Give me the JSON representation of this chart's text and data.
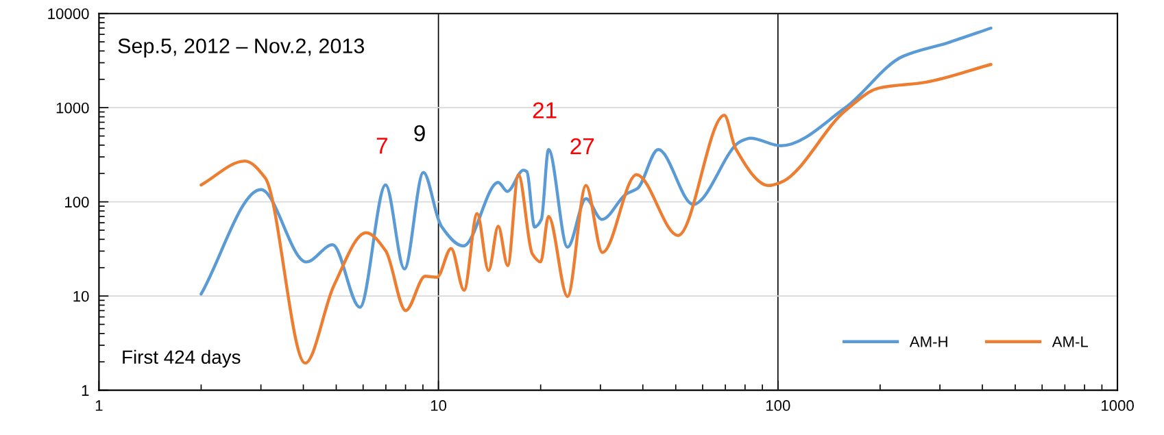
{
  "chart_data": {
    "type": "line",
    "series": [
      {
        "name": "AM-H",
        "color": "#5b9bd5",
        "x": [
          2,
          3.0,
          4.08,
          4.88,
          5.87,
          6.99,
          7.94,
          9.03,
          10.0,
          10.2,
          11.85,
          15.0,
          15.95,
          17.8,
          18.2,
          19.2,
          20.1,
          21.1,
          24.0,
          27.2,
          30.3,
          35.7,
          38.6,
          44.4,
          56.3,
          77.4,
          83,
          102,
          158,
          233,
          317,
          424
        ],
        "values": [
          10.5,
          135,
          23,
          35,
          7.6,
          151,
          19.4,
          205,
          65,
          55,
          34,
          161,
          129,
          217,
          210,
          54,
          65,
          359,
          33,
          108,
          65,
          121,
          139,
          359,
          94,
          436,
          474,
          394,
          1000,
          3500,
          4900,
          7000
        ]
      },
      {
        "name": "AM-L",
        "color": "#ed7d31",
        "x": [
          2,
          2.69,
          3.09,
          4.05,
          4.92,
          6.12,
          7.0,
          8.01,
          9.14,
          9.9,
          10.9,
          11.9,
          13.0,
          14.05,
          15.0,
          16.0,
          17.2,
          18.9,
          20.0,
          21.1,
          24.0,
          27.2,
          30.4,
          38.3,
          50.8,
          69.5,
          75,
          94,
          102,
          158,
          199,
          272,
          424
        ],
        "values": [
          151,
          271,
          179,
          1.94,
          12.9,
          47,
          30,
          7.0,
          16.2,
          15.8,
          32,
          11.5,
          75,
          18.6,
          55,
          21,
          194,
          28,
          23,
          70,
          9.9,
          149,
          29,
          194,
          44,
          830,
          370,
          149,
          161,
          930,
          1620,
          1860,
          2880
        ]
      }
    ],
    "log": "xy",
    "xlim": [
      1,
      1000
    ],
    "xticks": [
      1,
      10,
      100,
      1000
    ],
    "ylim": [
      1,
      10000
    ],
    "yticks": [
      1,
      10,
      100,
      1000,
      10000
    ],
    "grid": true,
    "legend": "bottom right",
    "marker": "none",
    "line_style": "solid",
    "annotations": [
      "Sep.5, 2012 – Nov.2, 2013",
      "First 424 days",
      {
        "text": "7",
        "x": 7,
        "y": 151
      },
      {
        "text": "9",
        "x": 9.03,
        "y": 205
      },
      {
        "text": "21",
        "x": 21.1,
        "y": 359
      },
      {
        "text": "27",
        "x": 27.2,
        "y": 149
      }
    ]
  }
}
